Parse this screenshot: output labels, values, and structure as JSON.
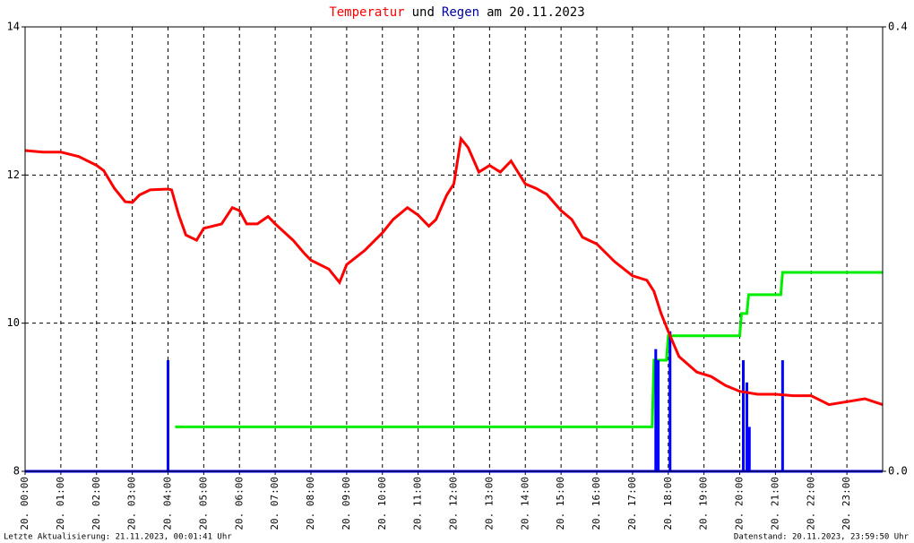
{
  "chart_data": {
    "type": "line",
    "title": [
      {
        "text": "Temperatur",
        "color": "#ff0000"
      },
      {
        "text": "und",
        "color": "#000000"
      },
      {
        "text": "Regen",
        "color": "#0000a0"
      },
      {
        "text": "am 20.11.2023",
        "color": "#000000"
      }
    ],
    "xlim": [
      0,
      24
    ],
    "xticks": [
      {
        "value": 0,
        "label": "20. 00:00"
      },
      {
        "value": 1,
        "label": "20. 01:00"
      },
      {
        "value": 2,
        "label": "20. 02:00"
      },
      {
        "value": 3,
        "label": "20. 03:00"
      },
      {
        "value": 4,
        "label": "20. 04:00"
      },
      {
        "value": 5,
        "label": "20. 05:00"
      },
      {
        "value": 6,
        "label": "20. 06:00"
      },
      {
        "value": 7,
        "label": "20. 07:00"
      },
      {
        "value": 8,
        "label": "20. 08:00"
      },
      {
        "value": 9,
        "label": "20. 09:00"
      },
      {
        "value": 10,
        "label": "20. 10:00"
      },
      {
        "value": 11,
        "label": "20. 11:00"
      },
      {
        "value": 12,
        "label": "20. 12:00"
      },
      {
        "value": 13,
        "label": "20. 13:00"
      },
      {
        "value": 14,
        "label": "20. 14:00"
      },
      {
        "value": 15,
        "label": "20. 15:00"
      },
      {
        "value": 16,
        "label": "20. 16:00"
      },
      {
        "value": 17,
        "label": "20. 17:00"
      },
      {
        "value": 18,
        "label": "20. 18:00"
      },
      {
        "value": 19,
        "label": "20. 19:00"
      },
      {
        "value": 20,
        "label": "20. 20:00"
      },
      {
        "value": 21,
        "label": "20. 21:00"
      },
      {
        "value": 22,
        "label": "20. 22:00"
      },
      {
        "value": 23,
        "label": "20. 23:00"
      }
    ],
    "ylim": [
      8,
      14
    ],
    "yticks": [
      8,
      10,
      12,
      14
    ],
    "y2lim": [
      0,
      0.4
    ],
    "y2ticks": [
      {
        "value": 0,
        "label": "0.0"
      },
      {
        "value": 0.4,
        "label": "0.4"
      }
    ],
    "grid": true,
    "series": [
      {
        "type": "line",
        "color": "#ff0000",
        "x": [
          0,
          0.5,
          1,
          1.5,
          2,
          2.2,
          2.5,
          2.8,
          3,
          3.2,
          3.5,
          4,
          4.1,
          4.3,
          4.5,
          4.8,
          5,
          5.5,
          5.8,
          6,
          6.2,
          6.5,
          6.8,
          7,
          7.5,
          7.8,
          8,
          8.5,
          8.8,
          9,
          9.5,
          10,
          10.3,
          10.7,
          11,
          11.3,
          11.5,
          11.8,
          12,
          12.2,
          12.4,
          12.7,
          13,
          13.3,
          13.6,
          14,
          14.3,
          14.6,
          15,
          15.3,
          15.6,
          16,
          16.5,
          17,
          17.4,
          17.6,
          17.8,
          18,
          18.3,
          18.8,
          19.2,
          19.6,
          20,
          20.5,
          21,
          21.5,
          22,
          22.5,
          23,
          23.5,
          24
        ],
        "values": [
          12.33,
          12.31,
          12.31,
          12.25,
          12.13,
          12.06,
          11.82,
          11.64,
          11.63,
          11.73,
          11.8,
          11.81,
          11.8,
          11.46,
          11.19,
          11.12,
          11.28,
          11.34,
          11.56,
          11.52,
          11.34,
          11.34,
          11.44,
          11.34,
          11.12,
          10.95,
          10.85,
          10.73,
          10.55,
          10.79,
          10.98,
          11.22,
          11.4,
          11.56,
          11.46,
          11.31,
          11.4,
          11.73,
          11.88,
          12.49,
          12.37,
          12.04,
          12.13,
          12.04,
          12.19,
          11.88,
          11.82,
          11.74,
          11.52,
          11.4,
          11.16,
          11.07,
          10.83,
          10.64,
          10.58,
          10.43,
          10.13,
          9.89,
          9.55,
          9.34,
          9.28,
          9.16,
          9.08,
          9.04,
          9.04,
          9.02,
          9.02,
          8.9,
          8.94,
          8.98,
          8.9
        ]
      },
      {
        "type": "line",
        "axis": "y2",
        "color": "#00ee00",
        "x": [
          4.2,
          17.55,
          17.6,
          17.95,
          18.0,
          20.0,
          20.05,
          20.2,
          20.25,
          21.15,
          21.2,
          24
        ],
        "values": [
          0.04,
          0.04,
          0.1,
          0.1,
          0.122,
          0.122,
          0.142,
          0.142,
          0.159,
          0.159,
          0.179,
          0.179
        ]
      },
      {
        "type": "bar",
        "axis": "y2",
        "color": "#0000ff",
        "x": [
          4.0,
          17.65,
          17.72,
          18.05,
          20.1,
          20.2,
          20.27,
          21.2
        ],
        "values": [
          0.1,
          0.11,
          0.1,
          0.126,
          0.1,
          0.08,
          0.04,
          0.1
        ]
      }
    ]
  },
  "footer": {
    "left": "Letzte Aktualisierung: 21.11.2023, 00:01:41 Uhr",
    "right": "Datenstand: 20.11.2023, 23:59:50 Uhr"
  }
}
